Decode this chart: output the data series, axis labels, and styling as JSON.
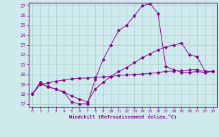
{
  "xlabel": "Windchill (Refroidissement éolien,°C)",
  "bg_color": "#ceeaec",
  "line_color": "#880088",
  "grid_color": "#b0d8dc",
  "ylim": [
    17,
    27
  ],
  "xlim": [
    -0.5,
    23.5
  ],
  "yticks": [
    17,
    18,
    19,
    20,
    21,
    22,
    23,
    24,
    25,
    26,
    27
  ],
  "xticks": [
    0,
    1,
    2,
    3,
    4,
    5,
    6,
    7,
    8,
    9,
    10,
    11,
    12,
    13,
    14,
    15,
    16,
    17,
    18,
    19,
    20,
    21,
    22,
    23
  ],
  "line1_x": [
    0,
    1,
    2,
    3,
    4,
    5,
    6,
    7,
    8,
    9,
    10,
    11,
    12,
    13,
    14,
    15,
    16,
    17,
    18,
    19,
    20,
    21,
    22,
    23
  ],
  "line1_y": [
    18.0,
    19.2,
    18.7,
    18.5,
    18.2,
    17.2,
    17.0,
    17.0,
    19.5,
    21.5,
    23.0,
    24.5,
    25.0,
    26.0,
    27.0,
    27.2,
    26.2,
    20.8,
    20.5,
    20.2,
    20.2,
    20.3,
    20.2,
    20.3
  ],
  "line2_x": [
    0,
    1,
    2,
    3,
    4,
    5,
    6,
    7,
    8,
    9,
    10,
    11,
    12,
    13,
    14,
    15,
    16,
    17,
    18,
    19,
    20,
    21,
    22,
    23
  ],
  "line2_y": [
    18.0,
    19.0,
    18.8,
    18.5,
    18.2,
    17.8,
    17.5,
    17.2,
    18.5,
    19.2,
    19.8,
    20.3,
    20.7,
    21.2,
    21.7,
    22.1,
    22.5,
    22.8,
    23.0,
    23.2,
    22.0,
    21.8,
    20.3,
    20.3
  ],
  "line3_x": [
    0,
    1,
    2,
    3,
    4,
    5,
    6,
    7,
    8,
    9,
    10,
    11,
    12,
    13,
    14,
    15,
    16,
    17,
    18,
    19,
    20,
    21,
    22,
    23
  ],
  "line3_y": [
    18.0,
    19.0,
    19.15,
    19.3,
    19.45,
    19.55,
    19.6,
    19.65,
    19.7,
    19.75,
    19.8,
    19.9,
    19.95,
    20.0,
    20.05,
    20.1,
    20.2,
    20.3,
    20.35,
    20.4,
    20.45,
    20.5,
    20.3,
    20.3
  ]
}
